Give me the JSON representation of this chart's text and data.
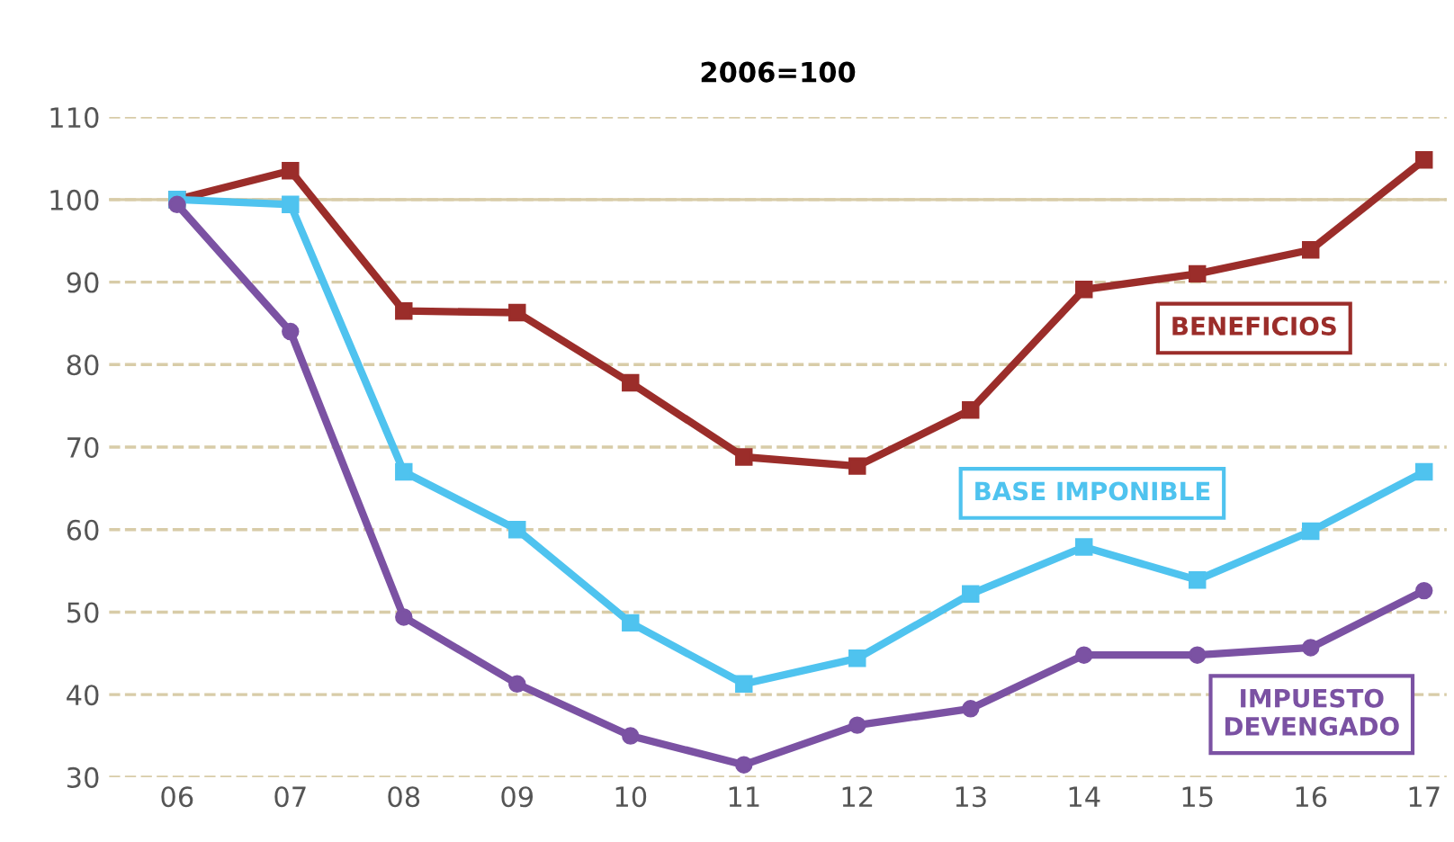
{
  "chart_data": {
    "type": "line",
    "title": "2006=100",
    "x": [
      2006,
      2007,
      2008,
      2009,
      2010,
      2011,
      2012,
      2013,
      2014,
      2015,
      2016,
      2017
    ],
    "xlim": [
      2005.4,
      2017.2
    ],
    "xticks": [
      {
        "value": 2006,
        "label": "06"
      },
      {
        "value": 2007,
        "label": "07"
      },
      {
        "value": 2008,
        "label": "08"
      },
      {
        "value": 2009,
        "label": "09"
      },
      {
        "value": 2010,
        "label": "10"
      },
      {
        "value": 2011,
        "label": "11"
      },
      {
        "value": 2012,
        "label": "12"
      },
      {
        "value": 2013,
        "label": "13"
      },
      {
        "value": 2014,
        "label": "14"
      },
      {
        "value": 2015,
        "label": "15"
      },
      {
        "value": 2016,
        "label": "16"
      },
      {
        "value": 2017,
        "label": "17"
      }
    ],
    "ylim": [
      30,
      110
    ],
    "yticks": [
      30,
      40,
      50,
      60,
      70,
      80,
      90,
      100,
      110
    ],
    "grid": "y",
    "legend": false,
    "line_style": "solid",
    "ref_lines": [
      {
        "axis": "y",
        "value": 100,
        "color": "#d8cca8",
        "line_style": "solid"
      }
    ],
    "series": [
      {
        "name": "BENEFICIOS",
        "color": "#9b2d2a",
        "marker": "square",
        "values": [
          100,
          103.5,
          86.5,
          86.3,
          77.8,
          68.8,
          67.7,
          74.5,
          89.1,
          91,
          93.9,
          104.8
        ]
      },
      {
        "name": "BASE IMPONIBLE",
        "color": "#4fc3ef",
        "marker": "square",
        "values": [
          100,
          99.4,
          67,
          60,
          48.7,
          41.3,
          44.4,
          52.2,
          57.9,
          53.9,
          59.8,
          67
        ]
      },
      {
        "name": "IMPUESTO\nDEVENGADO",
        "color": "#7b52a3",
        "marker": "circle",
        "values": [
          99.4,
          84,
          49.4,
          41.3,
          35,
          31.5,
          36.3,
          38.3,
          44.8,
          44.8,
          45.7,
          52.6
        ]
      }
    ]
  }
}
